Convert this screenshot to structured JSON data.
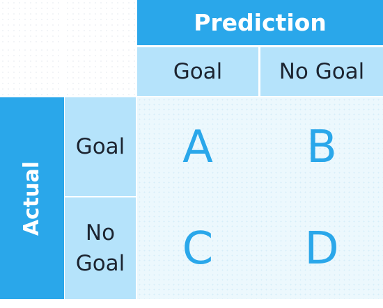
{
  "prediction_header": "Prediction",
  "actual_header": "Actual",
  "columns": [
    "Goal",
    "No Goal"
  ],
  "rows": [
    {
      "label_lines": [
        "Goal"
      ],
      "cells": [
        "A",
        "B"
      ]
    },
    {
      "label_lines": [
        "No",
        "Goal"
      ],
      "cells": [
        "C",
        "D"
      ]
    }
  ],
  "colors": {
    "accent": "#2aa7ea",
    "accent_light": "#b5e3fb",
    "matrix_background": "#ecf8fd",
    "text_dark": "#1c2430"
  }
}
